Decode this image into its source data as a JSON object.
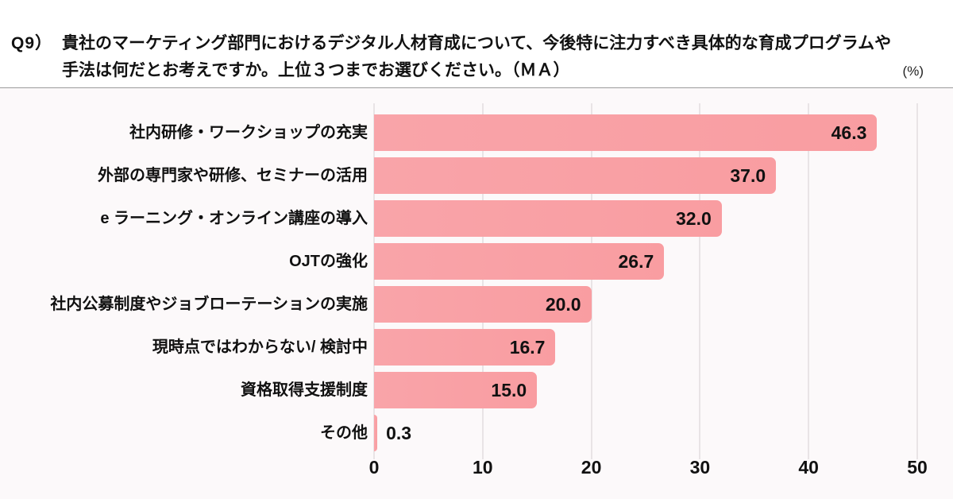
{
  "header": {
    "question_number": "Q9）",
    "question_line1": "貴社のマーケティング部門におけるデジタル人材育成について、今後特に注力すべき具体的な育成プログラムや",
    "question_line2": "手法は何だとお考えですか。上位３つまでお選びください。（ＭＡ）",
    "unit_label": "(%)"
  },
  "chart_data": {
    "type": "bar",
    "orientation": "horizontal",
    "title": "Q9）貴社のマーケティング部門におけるデジタル人材育成について、今後特に注力すべき具体的な育成プログラムや手法は何だとお考えですか。上位３つまでお選びください。（ＭＡ）",
    "unit": "%",
    "categories": [
      "社内研修・ワークショップの充実",
      "外部の専門家や研修、セミナーの活用",
      "e ラーニング・オンライン講座の導入",
      "OJTの強化",
      "社内公募制度やジョブローテーションの実施",
      "現時点ではわからない/ 検討中",
      "資格取得支援制度",
      "その他"
    ],
    "values": [
      46.3,
      37.0,
      32.0,
      26.7,
      20.0,
      16.7,
      15.0,
      0.3
    ],
    "value_labels": [
      "46.3",
      "37.0",
      "32.0",
      "26.7",
      "20.0",
      "16.7",
      "15.0",
      "0.3"
    ],
    "xlim": [
      0,
      50
    ],
    "x_ticks": [
      0,
      10,
      20,
      30,
      40,
      50
    ],
    "grid": "vertical",
    "legend": "none",
    "colors": {
      "bar": "#F99DA1",
      "chart_background": "#FCF9FA",
      "gridline": "#E9E4E6",
      "text": "#111111",
      "divider": "#9B9B9B"
    }
  }
}
